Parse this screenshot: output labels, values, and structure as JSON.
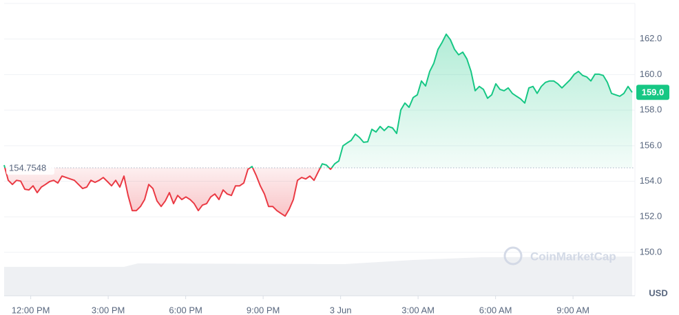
{
  "chart_data": {
    "type": "line",
    "x": [
      -1.03,
      -0.87,
      -0.71,
      -0.55,
      -0.39,
      -0.23,
      -0.07,
      0.09,
      0.25,
      0.41,
      0.57,
      0.73,
      0.89,
      1.05,
      1.21,
      1.37,
      1.53,
      1.69,
      1.85,
      2.01,
      2.17,
      2.33,
      2.49,
      2.65,
      2.81,
      2.97,
      3.13,
      3.29,
      3.45,
      3.61,
      3.77,
      3.93,
      4.09,
      4.25,
      4.41,
      4.57,
      4.73,
      4.89,
      5.05,
      5.21,
      5.37,
      5.53,
      5.69,
      5.85,
      6.01,
      6.17,
      6.33,
      6.49,
      6.65,
      6.81,
      6.97,
      7.13,
      7.29,
      7.45,
      7.61,
      7.77,
      7.93,
      8.09,
      8.25,
      8.41,
      8.57,
      8.73,
      8.89,
      9.05,
      9.21,
      9.37,
      9.53,
      9.69,
      9.85,
      10.01,
      10.17,
      10.33,
      10.49,
      10.65,
      10.81,
      10.97,
      11.13,
      11.29,
      11.45,
      11.61,
      11.77,
      11.93,
      12.09,
      12.25,
      12.41,
      12.57,
      12.73,
      12.89,
      13.05,
      13.21,
      13.37,
      13.53,
      13.69,
      13.85,
      14.01,
      14.17,
      14.33,
      14.49,
      14.65,
      14.81,
      14.97,
      15.13,
      15.29,
      15.45,
      15.61,
      15.77,
      15.93,
      16.09,
      16.25,
      16.41,
      16.57,
      16.73,
      16.89,
      17.05,
      17.21,
      17.37,
      17.53,
      17.69,
      17.85,
      18.01,
      18.17,
      18.33,
      18.49,
      18.65,
      18.81,
      18.97,
      19.13,
      19.29,
      19.45,
      19.61,
      19.77,
      19.93,
      20.09,
      20.25,
      20.41,
      20.57,
      20.73,
      20.89,
      21.05,
      21.21,
      21.37,
      21.53,
      21.69,
      21.85,
      22.01,
      22.17,
      22.33,
      22.49,
      22.65,
      22.81,
      22.97,
      23.13,
      23.29
    ],
    "series": [
      {
        "name": "USD",
        "color_up": "#16c784",
        "color_down": "#ea3943",
        "values": [
          154.91,
          154.05,
          153.82,
          154.05,
          154.01,
          153.55,
          153.51,
          153.74,
          153.36,
          153.67,
          153.82,
          153.98,
          154.05,
          153.9,
          154.29,
          154.21,
          154.13,
          154.05,
          153.82,
          153.59,
          153.67,
          154.05,
          153.94,
          154.05,
          154.21,
          153.98,
          153.74,
          154.05,
          153.67,
          154.29,
          153.2,
          152.35,
          152.35,
          152.58,
          152.97,
          153.82,
          153.59,
          152.89,
          152.58,
          152.89,
          153.36,
          152.74,
          153.2,
          152.97,
          153.12,
          152.97,
          152.74,
          152.35,
          152.66,
          152.74,
          153.12,
          153.28,
          152.97,
          153.51,
          153.28,
          153.2,
          153.74,
          153.74,
          153.9,
          154.67,
          154.83,
          154.33,
          153.74,
          153.28,
          152.58,
          152.58,
          152.35,
          152.19,
          152.04,
          152.43,
          152.97,
          154.05,
          154.21,
          154.13,
          154.29,
          154.05,
          154.52,
          154.98,
          154.91,
          154.67,
          154.98,
          155.14,
          155.99,
          156.15,
          156.3,
          156.65,
          156.46,
          156.19,
          156.22,
          156.92,
          156.77,
          157.08,
          156.85,
          157.08,
          157.0,
          156.69,
          158.01,
          158.4,
          158.16,
          158.71,
          158.86,
          159.64,
          159.36,
          160.18,
          160.64,
          161.42,
          161.81,
          162.27,
          161.96,
          161.42,
          161.11,
          161.26,
          160.88,
          160.18,
          159.09,
          159.33,
          159.17,
          158.67,
          158.86,
          159.48,
          159.17,
          159.09,
          159.25,
          158.94,
          158.78,
          158.63,
          158.4,
          159.25,
          159.33,
          158.94,
          159.33,
          159.56,
          159.64,
          159.64,
          159.48,
          159.25,
          159.48,
          159.71,
          160.02,
          160.18,
          159.95,
          159.87,
          159.64,
          160.02,
          160.02,
          159.95,
          159.56,
          158.94,
          158.86,
          158.78,
          158.94,
          159.33,
          159.0
        ]
      }
    ],
    "baseline": 154.7548,
    "last_price_label": "159.0",
    "xlim": [
      -1.03,
      23.29
    ],
    "xticks": [
      {
        "value": 0,
        "label": "12:00 PM"
      },
      {
        "value": 3,
        "label": "3:00 PM"
      },
      {
        "value": 6,
        "label": "6:00 PM"
      },
      {
        "value": 9,
        "label": "9:00 PM"
      },
      {
        "value": 12,
        "label": "3 Jun"
      },
      {
        "value": 15,
        "label": "3:00 AM"
      },
      {
        "value": 18,
        "label": "6:00 AM"
      },
      {
        "value": 21,
        "label": "9:00 AM"
      }
    ],
    "ylim": [
      147.56,
      164.0
    ],
    "yticks": [
      {
        "value": 150,
        "label": "150.0"
      },
      {
        "value": 152,
        "label": "152.0"
      },
      {
        "value": 154,
        "label": "154.0"
      },
      {
        "value": 156,
        "label": "156.0"
      },
      {
        "value": 158,
        "label": "158.0"
      },
      {
        "value": 160,
        "label": "160.0"
      },
      {
        "value": 162,
        "label": "162.0"
      }
    ],
    "y_axis_label": "USD",
    "watermark": "CoinMarketCap",
    "grid": true
  }
}
